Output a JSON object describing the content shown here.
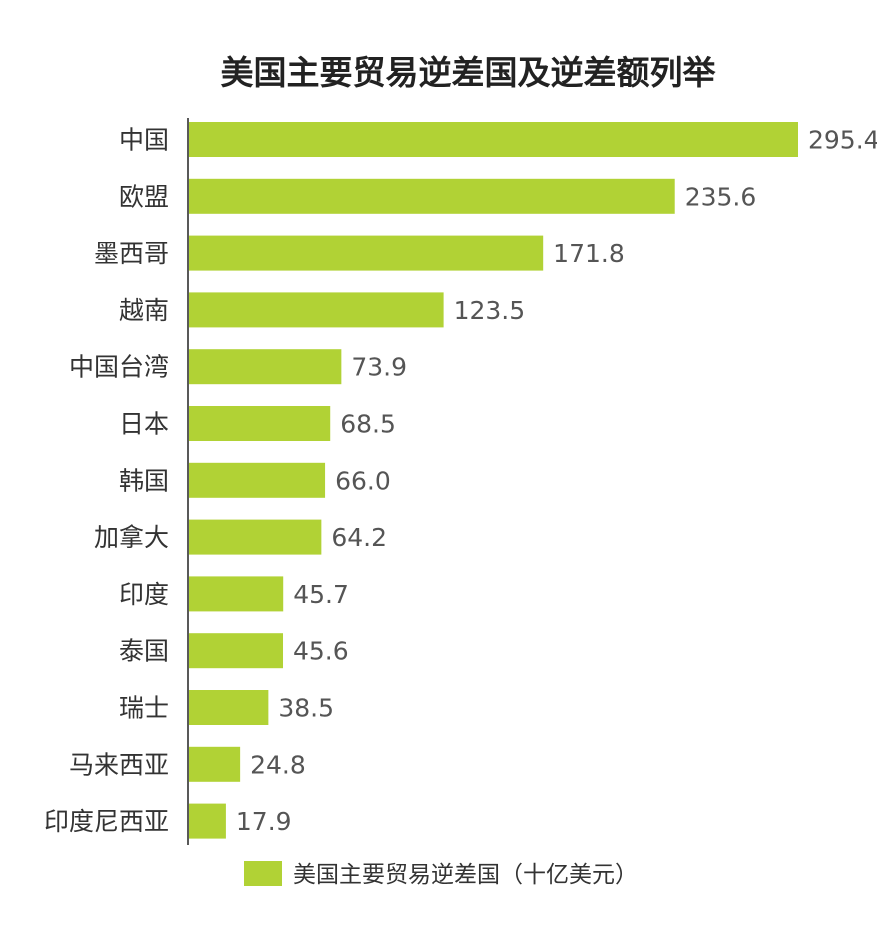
{
  "chart_data": {
    "type": "bar",
    "orientation": "horizontal",
    "title": "美国主要贸易逆差国及逆差额列举",
    "categories": [
      "中国",
      "欧盟",
      "墨西哥",
      "越南",
      "中国台湾",
      "日本",
      "韩国",
      "加拿大",
      "印度",
      "泰国",
      "瑞士",
      "马来西亚",
      "印度尼西亚"
    ],
    "series": [
      {
        "name": "美国主要贸易逆差国（十亿美元）",
        "values": [
          295.4,
          235.6,
          171.8,
          123.5,
          73.9,
          68.5,
          66.0,
          64.2,
          45.7,
          45.6,
          38.5,
          24.8,
          17.9
        ],
        "color": "#b1d235"
      }
    ],
    "xlim": [
      0,
      295.4
    ],
    "data_labels": true,
    "legend_position": "bottom",
    "grid": false
  }
}
